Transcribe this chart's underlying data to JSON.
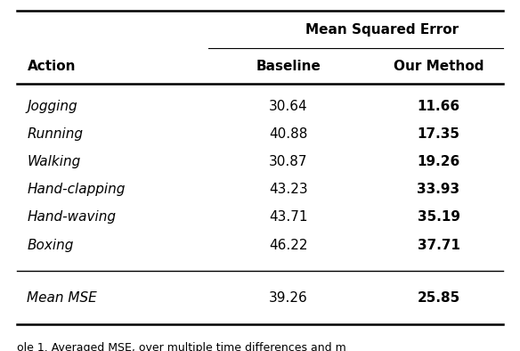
{
  "title_header": "Mean Squared Error",
  "col1_header": "Action",
  "col2_header": "Baseline",
  "col3_header": "Our Method",
  "rows": [
    [
      "Jogging",
      "30.64",
      "11.66"
    ],
    [
      "Running",
      "40.88",
      "17.35"
    ],
    [
      "Walking",
      "30.87",
      "19.26"
    ],
    [
      "Hand-clapping",
      "43.23",
      "33.93"
    ],
    [
      "Hand-waving",
      "43.71",
      "35.19"
    ],
    [
      "Boxing",
      "46.22",
      "37.71"
    ]
  ],
  "footer_row": [
    "Mean MSE",
    "39.26",
    "25.85"
  ],
  "caption": "ole 1. Averaged MSE, over multiple time differences and m",
  "bg_color": "#ffffff",
  "text_color": "#000000",
  "fig_width": 5.84,
  "fig_height": 3.94
}
